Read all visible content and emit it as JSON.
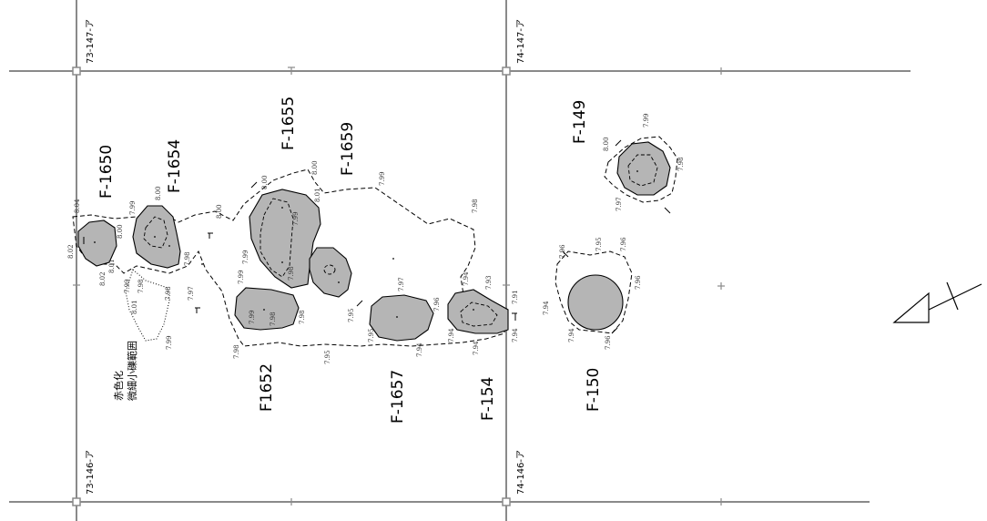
{
  "grid_labels": {
    "tl": "73-147-ア",
    "tr": "74-147-ア",
    "bl": "73-146-ア",
    "br": "74-146-ア"
  },
  "features": {
    "f1650": "F-1650",
    "f1654": "F-1654",
    "f1655": "F-1655",
    "f1659": "F-1659",
    "f1652": "F1652",
    "f1657": "F-1657",
    "f154": "F-154",
    "f149": "F-149",
    "f150": "F-150"
  },
  "note": {
    "line1": "赤色化",
    "line2": "微細小礫範囲"
  },
  "elevations": {
    "e1": "8.04",
    "e2": "8.02",
    "e3": "8.02",
    "e4": "8.01",
    "e5": "8.00",
    "e6": "7.99",
    "e7": "8.00",
    "e8": "7.99",
    "e9": "7.98",
    "e10": "7.97",
    "e11": "8.01",
    "e12": "7.98",
    "e13": "7.99",
    "e14": "8.00",
    "e15": "7.99",
    "e16": "7.99",
    "e17": "8.00",
    "e18": "8.01",
    "e19": "7.99",
    "e20": "7.98",
    "e21": "8.00",
    "e22": "7.99",
    "e23": "7.98",
    "e24": "7.98",
    "e25": "7.98",
    "e26": "7.95",
    "e27": "7.95",
    "e28": "7.97",
    "e29": "7.96",
    "e30": "7.95",
    "e31": "7.94",
    "e32": "7.94",
    "e33": "7.93",
    "e34": "7.91",
    "e35": "7.94",
    "e36": "7.94",
    "e37": "7.94",
    "e38": "7.96",
    "e39": "7.95",
    "e40": "7.96",
    "e41": "7.96",
    "e42": "7.94",
    "e43": "7.94",
    "e44": "7.96",
    "e45": "7.99",
    "e46": "8.00",
    "e47": "7.97",
    "e48": "7.98",
    "e49": "7.98",
    "e50": "7.99",
    "e51": "7.98"
  },
  "colors": {
    "pit_fill": "#b5b5b5",
    "grid": "#8a8a8a"
  }
}
